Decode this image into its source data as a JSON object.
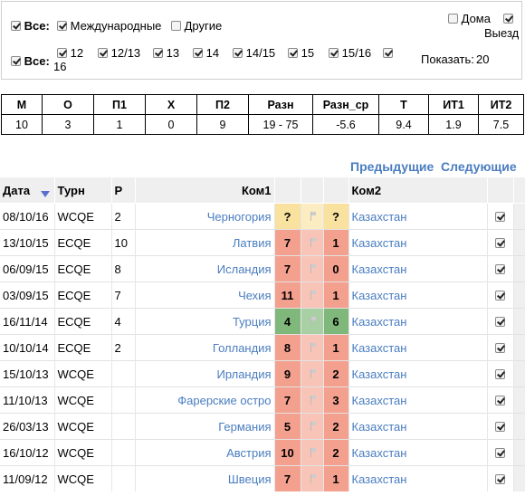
{
  "filters": {
    "row1": {
      "all_label": "Все:",
      "international": "Международные",
      "other": "Другие",
      "home": "Дома",
      "away": "Выезд"
    },
    "row2": {
      "all_label": "Все:",
      "seasons": [
        "12",
        "12/13",
        "13",
        "14",
        "14/15",
        "15",
        "15/16",
        "16"
      ],
      "show_label": "Показать:",
      "show_value": "20"
    }
  },
  "stats": {
    "headers": [
      "М",
      "О",
      "П1",
      "Х",
      "П2",
      "Разн",
      "Разн_ср",
      "Т",
      "ИТ1",
      "ИТ2"
    ],
    "values": [
      "10",
      "3",
      "1",
      "0",
      "9",
      "19 - 75",
      "-5.6",
      "9.4",
      "1.9",
      "7.5"
    ]
  },
  "pager": {
    "prev": "Предыдущие",
    "next": "Следующие"
  },
  "games": {
    "headers": {
      "date": "Дата",
      "tourn": "Турн",
      "round": "Р",
      "team1": "Ком1",
      "team2": "Ком2"
    },
    "rows": [
      {
        "date": "08/10/16",
        "tourn": "WCQE",
        "round": "2",
        "team1": "Черногория",
        "s1": "?",
        "s2": "?",
        "team2": "Казахстан",
        "result": "unk"
      },
      {
        "date": "13/10/15",
        "tourn": "ECQE",
        "round": "10",
        "team1": "Латвия",
        "s1": "7",
        "s2": "1",
        "team2": "Казахстан",
        "result": "loss"
      },
      {
        "date": "06/09/15",
        "tourn": "ECQE",
        "round": "8",
        "team1": "Исландия",
        "s1": "7",
        "s2": "0",
        "team2": "Казахстан",
        "result": "loss"
      },
      {
        "date": "03/09/15",
        "tourn": "ECQE",
        "round": "7",
        "team1": "Чехия",
        "s1": "11",
        "s2": "1",
        "team2": "Казахстан",
        "result": "loss"
      },
      {
        "date": "16/11/14",
        "tourn": "ECQE",
        "round": "4",
        "team1": "Турция",
        "s1": "4",
        "s2": "6",
        "team2": "Казахстан",
        "result": "win"
      },
      {
        "date": "10/10/14",
        "tourn": "ECQE",
        "round": "2",
        "team1": "Голландия",
        "s1": "8",
        "s2": "1",
        "team2": "Казахстан",
        "result": "loss"
      },
      {
        "date": "15/10/13",
        "tourn": "WCQE",
        "round": "",
        "team1": "Ирландия",
        "s1": "9",
        "s2": "2",
        "team2": "Казахстан",
        "result": "loss"
      },
      {
        "date": "11/10/13",
        "tourn": "WCQE",
        "round": "",
        "team1": "Фарерские остро",
        "s1": "7",
        "s2": "3",
        "team2": "Казахстан",
        "result": "loss"
      },
      {
        "date": "26/03/13",
        "tourn": "WCQE",
        "round": "",
        "team1": "Германия",
        "s1": "5",
        "s2": "2",
        "team2": "Казахстан",
        "result": "loss"
      },
      {
        "date": "16/10/12",
        "tourn": "WCQE",
        "round": "",
        "team1": "Австрия",
        "s1": "10",
        "s2": "2",
        "team2": "Казахстан",
        "result": "loss"
      },
      {
        "date": "11/09/12",
        "tourn": "WCQE",
        "round": "",
        "team1": "Швеция",
        "s1": "7",
        "s2": "1",
        "team2": "Казахстан",
        "result": "loss"
      }
    ]
  },
  "colors": {
    "link": "#4a7dc0",
    "loss": "#f4a08f",
    "win": "#7fb87a",
    "unknown": "#f9e2a0"
  }
}
